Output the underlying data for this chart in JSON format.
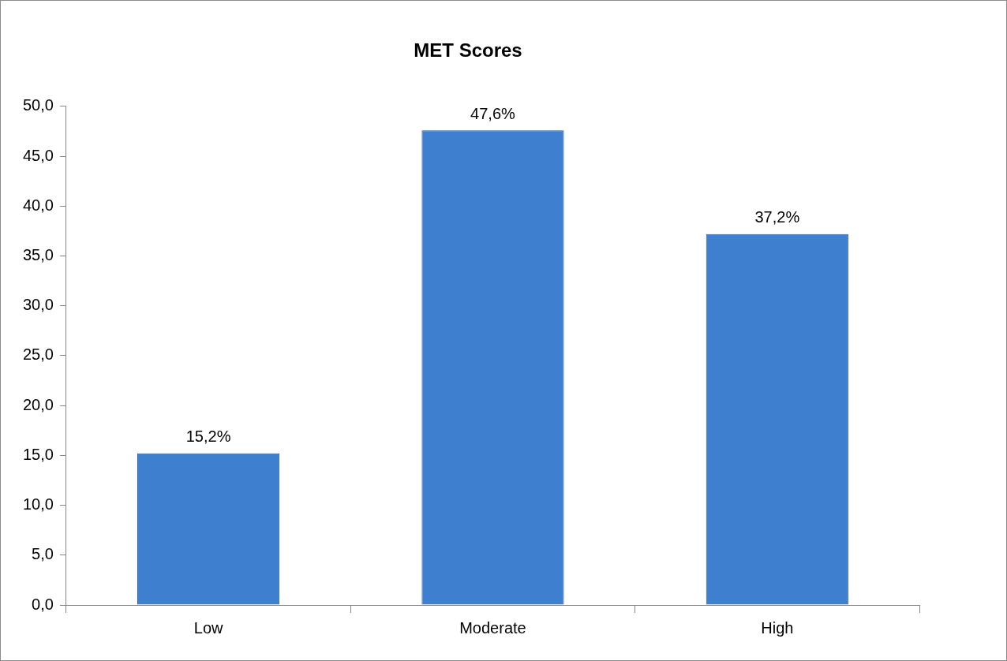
{
  "chart_data": {
    "type": "bar",
    "title": "MET Scores",
    "categories": [
      "Low",
      "Moderate",
      "High"
    ],
    "values": [
      15.2,
      47.6,
      37.2
    ],
    "value_labels": [
      "15,2%",
      "47,6%",
      "37,2%"
    ],
    "color": "#3f7fcf",
    "ylim": [
      0,
      50
    ],
    "yticks": [
      {
        "value": 0,
        "label": "0,0"
      },
      {
        "value": 5,
        "label": "5,0"
      },
      {
        "value": 10,
        "label": "10,0"
      },
      {
        "value": 15,
        "label": "15,0"
      },
      {
        "value": 20,
        "label": "20,0"
      },
      {
        "value": 25,
        "label": "25,0"
      },
      {
        "value": 30,
        "label": "30,0"
      },
      {
        "value": 35,
        "label": "35,0"
      },
      {
        "value": 40,
        "label": "40,0"
      },
      {
        "value": 45,
        "label": "45,0"
      },
      {
        "value": 50,
        "label": "50,0"
      }
    ],
    "grid": false,
    "legend": false
  }
}
